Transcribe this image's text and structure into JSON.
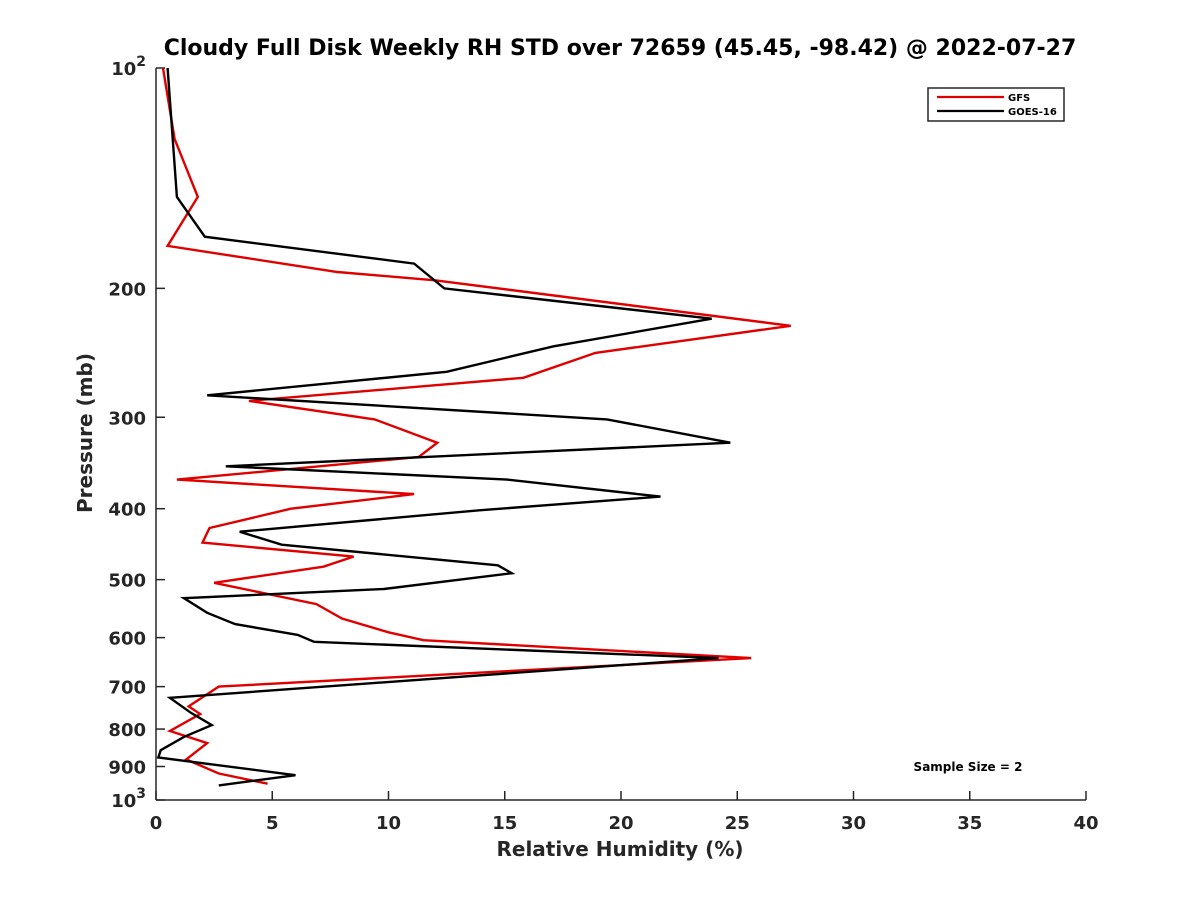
{
  "chart_data": {
    "type": "line",
    "title": "Cloudy Full Disk Weekly RH STD over 72659 (45.45, -98.42) @ 2022-07-27",
    "xlabel": "Relative Humidity (%)",
    "ylabel": "Pressure (mb)",
    "xlim": [
      0,
      40
    ],
    "ylim": [
      100,
      1000
    ],
    "y_scale": "log",
    "y_reversed": true,
    "x_ticks": [
      "0",
      "5",
      "10",
      "15",
      "20",
      "25",
      "30",
      "35",
      "40"
    ],
    "y_ticks": [
      {
        "value": 100,
        "base": "10",
        "exp": "2"
      },
      {
        "value": 200,
        "label": "200"
      },
      {
        "value": 300,
        "label": "300"
      },
      {
        "value": 400,
        "label": "400"
      },
      {
        "value": 500,
        "label": "500"
      },
      {
        "value": 600,
        "label": "600"
      },
      {
        "value": 700,
        "label": "700"
      },
      {
        "value": 800,
        "label": "800"
      },
      {
        "value": 900,
        "label": "900"
      },
      {
        "value": 1000,
        "base": "10",
        "exp": "3"
      }
    ],
    "legend_position": "top-right",
    "grid": false,
    "annotation": "Sample Size = 2",
    "series": [
      {
        "name": "GFS",
        "color": "#e00000",
        "points": [
          [
            0.3,
            100
          ],
          [
            0.8,
            125
          ],
          [
            1.8,
            150
          ],
          [
            0.5,
            175
          ],
          [
            7.8,
            190
          ],
          [
            12.0,
            195
          ],
          [
            27.3,
            225
          ],
          [
            18.9,
            245
          ],
          [
            15.8,
            265
          ],
          [
            4.0,
            285
          ],
          [
            9.4,
            302
          ],
          [
            12.1,
            325
          ],
          [
            11.3,
            340
          ],
          [
            0.9,
            365
          ],
          [
            11.1,
            382
          ],
          [
            5.8,
            400
          ],
          [
            2.3,
            425
          ],
          [
            2.0,
            445
          ],
          [
            8.5,
            465
          ],
          [
            7.2,
            480
          ],
          [
            2.5,
            505
          ],
          [
            6.9,
            540
          ],
          [
            8.0,
            565
          ],
          [
            10.0,
            590
          ],
          [
            11.5,
            605
          ],
          [
            25.6,
            640
          ],
          [
            2.7,
            700
          ],
          [
            1.4,
            745
          ],
          [
            1.9,
            763
          ],
          [
            0.6,
            805
          ],
          [
            2.2,
            836
          ],
          [
            1.3,
            880
          ],
          [
            2.7,
            920
          ],
          [
            4.8,
            950
          ]
        ]
      },
      {
        "name": "GOES-16",
        "color": "#000000",
        "points": [
          [
            0.5,
            100
          ],
          [
            0.9,
            150
          ],
          [
            2.1,
            170
          ],
          [
            11.1,
            185
          ],
          [
            12.4,
            200
          ],
          [
            23.9,
            220
          ],
          [
            17.1,
            240
          ],
          [
            12.5,
            260
          ],
          [
            2.2,
            280
          ],
          [
            19.4,
            302
          ],
          [
            24.7,
            325
          ],
          [
            3.0,
            350
          ],
          [
            15.1,
            365
          ],
          [
            21.7,
            385
          ],
          [
            13.9,
            402
          ],
          [
            3.6,
            430
          ],
          [
            5.4,
            448
          ],
          [
            14.7,
            478
          ],
          [
            15.3,
            490
          ],
          [
            9.8,
            515
          ],
          [
            1.2,
            530
          ],
          [
            2.2,
            555
          ],
          [
            3.4,
            575
          ],
          [
            6.1,
            595
          ],
          [
            6.8,
            608
          ],
          [
            24.2,
            640
          ],
          [
            0.6,
            725
          ],
          [
            1.5,
            760
          ],
          [
            2.4,
            790
          ],
          [
            1.2,
            820
          ],
          [
            0.2,
            855
          ],
          [
            0.1,
            875
          ],
          [
            6.0,
            925
          ],
          [
            2.7,
            955
          ]
        ]
      }
    ]
  }
}
